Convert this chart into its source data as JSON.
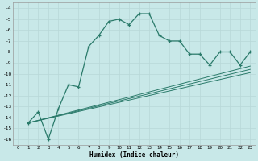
{
  "xlabel": "Humidex (Indice chaleur)",
  "background_color": "#c8e8e8",
  "grid_color": "#b8d8d8",
  "line_color": "#2a7a6a",
  "xlim": [
    -0.5,
    23.5
  ],
  "ylim": [
    -16.5,
    -3.5
  ],
  "yticks": [
    -16,
    -15,
    -14,
    -13,
    -12,
    -11,
    -10,
    -9,
    -8,
    -7,
    -6,
    -5,
    -4
  ],
  "xticks": [
    0,
    1,
    2,
    3,
    4,
    5,
    6,
    7,
    8,
    9,
    10,
    11,
    12,
    13,
    14,
    15,
    16,
    17,
    18,
    19,
    20,
    21,
    22,
    23
  ],
  "line1_x": [
    1,
    2,
    3,
    4,
    5,
    6,
    7,
    8,
    9,
    10,
    11,
    12,
    13,
    14,
    15,
    16,
    17,
    18,
    19,
    20,
    21,
    22,
    23
  ],
  "line1_y": [
    -14.5,
    -13.5,
    -16.0,
    -13.2,
    -11.0,
    -11.2,
    -7.5,
    -6.5,
    -5.2,
    -5.0,
    -5.5,
    -4.5,
    -4.5,
    -6.5,
    -7.0,
    -7.0,
    -8.2,
    -8.2,
    -9.2,
    -8.0,
    -8.0,
    -9.2,
    -8.0
  ],
  "line2_x": [
    1,
    23
  ],
  "line2_y": [
    -14.5,
    -9.3
  ],
  "line3_x": [
    1,
    23
  ],
  "line3_y": [
    -14.5,
    -9.6
  ],
  "line4_x": [
    1,
    23
  ],
  "line4_y": [
    -14.5,
    -9.9
  ]
}
